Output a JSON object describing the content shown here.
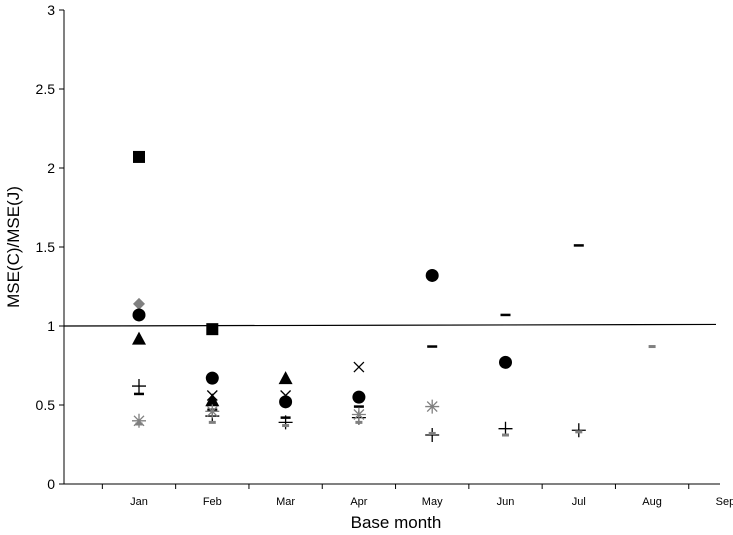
{
  "chart_data": {
    "type": "scatter",
    "title": "",
    "xlabel": "Base month",
    "ylabel": "MSE(C)/MSE(J)",
    "categories": [
      "Jan",
      "Feb",
      "Mar",
      "Apr",
      "May",
      "Jun",
      "Jul",
      "Aug",
      "Sep"
    ],
    "ylim": [
      0,
      3
    ],
    "yticks": [
      "0",
      "0.5",
      "1",
      "1.5",
      "2",
      "2.5",
      "3"
    ],
    "grid": false,
    "legend": "none",
    "reference_line": {
      "y_start": 1.0,
      "y_end": 1.01
    },
    "series": [
      {
        "marker": "square",
        "color": "#000000",
        "points": [
          {
            "x": "Jan",
            "y": 2.07
          },
          {
            "x": "Feb",
            "y": 0.98
          }
        ]
      },
      {
        "marker": "diamond",
        "color": "#808080",
        "points": [
          {
            "x": "Jan",
            "y": 1.14
          }
        ]
      },
      {
        "marker": "circle",
        "color": "#000000",
        "points": [
          {
            "x": "Jan",
            "y": 1.07
          },
          {
            "x": "Feb",
            "y": 0.67
          },
          {
            "x": "Mar",
            "y": 0.52
          },
          {
            "x": "Apr",
            "y": 0.55
          },
          {
            "x": "May",
            "y": 1.32
          },
          {
            "x": "Jun",
            "y": 0.77
          }
        ]
      },
      {
        "marker": "triangle",
        "color": "#000000",
        "points": [
          {
            "x": "Jan",
            "y": 0.92
          },
          {
            "x": "Feb",
            "y": 0.53
          },
          {
            "x": "Mar",
            "y": 0.67
          }
        ]
      },
      {
        "marker": "dash",
        "color": "#000000",
        "points": [
          {
            "x": "Jan",
            "y": 0.57
          },
          {
            "x": "Feb",
            "y": 0.47
          },
          {
            "x": "Mar",
            "y": 0.42
          },
          {
            "x": "Apr",
            "y": 0.49
          },
          {
            "x": "May",
            "y": 0.87
          },
          {
            "x": "Jun",
            "y": 1.07
          },
          {
            "x": "Jul",
            "y": 1.51
          }
        ]
      },
      {
        "marker": "plus",
        "color": "#000000",
        "points": [
          {
            "x": "Jan",
            "y": 0.62
          },
          {
            "x": "Feb",
            "y": 0.43
          },
          {
            "x": "Mar",
            "y": 0.39
          },
          {
            "x": "Apr",
            "y": 0.42
          },
          {
            "x": "May",
            "y": 0.31
          },
          {
            "x": "Jun",
            "y": 0.35
          },
          {
            "x": "Jul",
            "y": 0.34
          }
        ]
      },
      {
        "marker": "x",
        "color": "#000000",
        "points": [
          {
            "x": "Feb",
            "y": 0.56
          },
          {
            "x": "Mar",
            "y": 0.56
          },
          {
            "x": "Apr",
            "y": 0.74
          }
        ]
      },
      {
        "marker": "star",
        "color": "#808080",
        "points": [
          {
            "x": "Jan",
            "y": 0.4
          },
          {
            "x": "Feb",
            "y": 0.46
          },
          {
            "x": "Apr",
            "y": 0.44
          },
          {
            "x": "May",
            "y": 0.49
          }
        ]
      },
      {
        "marker": "small-dash",
        "color": "#808080",
        "points": [
          {
            "x": "Jan",
            "y": 0.38
          },
          {
            "x": "Feb",
            "y": 0.39
          },
          {
            "x": "Mar",
            "y": 0.37
          },
          {
            "x": "Apr",
            "y": 0.39
          },
          {
            "x": "May",
            "y": 0.32
          },
          {
            "x": "Jun",
            "y": 0.31
          },
          {
            "x": "Jul",
            "y": 0.33
          },
          {
            "x": "Aug",
            "y": 0.87
          }
        ]
      }
    ]
  }
}
